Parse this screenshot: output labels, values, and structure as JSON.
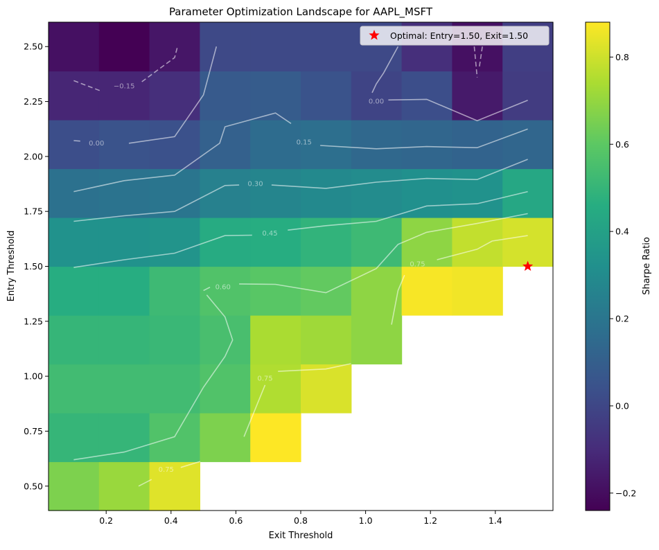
{
  "chart_data": {
    "type": "heatmap",
    "title": "Parameter Optimization Landscape for AAPL_MSFT",
    "xlabel": "Exit Threshold",
    "ylabel": "Entry Threshold",
    "colorbar_label": "Sharpe Ratio",
    "colormap": "viridis",
    "x_centers": [
      0.1,
      0.2555,
      0.411,
      0.5665,
      0.722,
      0.8775,
      1.033,
      1.1885,
      1.344,
      1.5
    ],
    "y_centers": [
      0.5,
      0.7222,
      0.9444,
      1.1667,
      1.3889,
      1.6111,
      1.8333,
      2.0556,
      2.2778,
      2.5
    ],
    "xlim": [
      0.0222,
      1.5778
    ],
    "ylim": [
      0.3889,
      2.6111
    ],
    "x_ticks": [
      "0.2",
      "0.4",
      "0.6",
      "0.8",
      "1.0",
      "1.2",
      "1.4"
    ],
    "y_ticks": [
      "0.50",
      "0.75",
      "1.00",
      "1.25",
      "1.50",
      "1.75",
      "2.00",
      "2.25",
      "2.50"
    ],
    "color_range": [
      -0.24,
      0.88
    ],
    "colorbar_ticks": [
      "−0.2",
      "0.0",
      "0.2",
      "0.4",
      "0.6",
      "0.8"
    ],
    "values": [
      [
        0.66,
        0.71,
        0.83,
        null,
        null,
        null,
        null,
        null,
        null,
        null
      ],
      [
        0.5,
        0.5,
        0.57,
        0.66,
        0.88,
        null,
        null,
        null,
        null,
        null
      ],
      [
        0.53,
        0.53,
        0.53,
        0.57,
        0.75,
        0.82,
        null,
        null,
        null,
        null
      ],
      [
        0.5,
        0.5,
        0.51,
        0.55,
        0.74,
        0.72,
        0.69,
        null,
        null,
        null
      ],
      [
        0.46,
        0.46,
        0.52,
        0.57,
        0.59,
        0.61,
        0.69,
        0.87,
        0.86,
        null
      ],
      [
        0.33,
        0.33,
        0.34,
        0.45,
        0.46,
        0.49,
        0.52,
        0.69,
        0.78,
        0.81
      ],
      [
        0.18,
        0.19,
        0.2,
        0.25,
        0.27,
        0.29,
        0.3,
        0.32,
        0.33,
        0.43
      ],
      [
        0.03,
        0.05,
        0.04,
        0.11,
        0.16,
        0.17,
        0.14,
        0.13,
        0.12,
        0.13
      ],
      [
        -0.12,
        -0.12,
        -0.09,
        0.08,
        0.09,
        0.05,
        -0.01,
        0.03,
        -0.16,
        -0.04
      ],
      [
        -0.19,
        -0.24,
        -0.17,
        0.01,
        0.01,
        0.01,
        0.01,
        -0.09,
        -0.19,
        -0.03
      ]
    ],
    "contours": [
      {
        "level": -0.15,
        "label": "−0.15",
        "dashed": true,
        "label_at": [
          0.2555,
          2.32
        ],
        "segments": [
          [
            [
              0.1,
              2.345
            ],
            [
              0.18,
              2.3
            ]
          ],
          [
            [
              0.31,
              2.34
            ],
            [
              0.411,
              2.45
            ],
            [
              0.42,
              2.5
            ]
          ],
          [
            [
              1.335,
              2.5
            ],
            [
              1.344,
              2.36
            ]
          ],
          [
            [
              1.36,
              2.5
            ],
            [
              1.35,
              2.4
            ]
          ]
        ]
      },
      {
        "level": 0.0,
        "label": "0.00",
        "dashed": false,
        "label_at": [
          0.17,
          2.06
        ],
        "segments": [
          [
            [
              0.1,
              2.072
            ],
            [
              0.12,
              2.07
            ]
          ],
          [
            [
              0.27,
              2.06
            ],
            [
              0.411,
              2.09
            ],
            [
              0.5,
              2.28
            ],
            [
              0.54,
              2.5
            ]
          ]
        ]
      },
      {
        "level": 0.0,
        "label": "0.00",
        "dashed": false,
        "label_at": [
          1.033,
          2.25
        ],
        "segments": [
          [
            [
              1.02,
              2.29
            ],
            [
              1.033,
              2.33
            ],
            [
              1.0555,
              2.38
            ],
            [
              1.1,
              2.5
            ]
          ],
          [
            [
              1.07,
              2.257
            ],
            [
              1.1885,
              2.26
            ],
            [
              1.344,
              2.163
            ],
            [
              1.5,
              2.256
            ]
          ]
        ]
      },
      {
        "level": 0.15,
        "label": "0.15",
        "dashed": false,
        "label_at": [
          0.81,
          2.065
        ],
        "segments": [
          [
            [
              0.1,
              1.84
            ],
            [
              0.2555,
              1.89
            ],
            [
              0.411,
              1.915
            ],
            [
              0.55,
              2.06
            ],
            [
              0.5665,
              2.135
            ],
            [
              0.722,
              2.198
            ],
            [
              0.77,
              2.15
            ]
          ],
          [
            [
              0.86,
              2.05
            ],
            [
              1.033,
              2.035
            ],
            [
              1.1885,
              2.045
            ],
            [
              1.344,
              2.04
            ],
            [
              1.5,
              2.125
            ]
          ]
        ]
      },
      {
        "level": 0.3,
        "label": "0.30",
        "dashed": false,
        "label_at": [
          0.66,
          1.875
        ],
        "segments": [
          [
            [
              0.1,
              1.705
            ],
            [
              0.2555,
              1.73
            ],
            [
              0.411,
              1.75
            ],
            [
              0.5665,
              1.868
            ],
            [
              0.61,
              1.87
            ]
          ],
          [
            [
              0.71,
              1.87
            ],
            [
              0.8775,
              1.855
            ],
            [
              1.033,
              1.883
            ],
            [
              1.1885,
              1.9
            ],
            [
              1.344,
              1.895
            ],
            [
              1.5,
              1.987
            ]
          ]
        ]
      },
      {
        "level": 0.45,
        "label": "0.45",
        "dashed": false,
        "label_at": [
          0.705,
          1.65
        ],
        "segments": [
          [
            [
              0.1,
              1.495
            ],
            [
              0.2555,
              1.53
            ],
            [
              0.411,
              1.56
            ],
            [
              0.5665,
              1.64
            ],
            [
              0.65,
              1.642
            ]
          ],
          [
            [
              0.76,
              1.665
            ],
            [
              0.8775,
              1.685
            ],
            [
              1.033,
              1.705
            ],
            [
              1.1885,
              1.775
            ],
            [
              1.344,
              1.785
            ],
            [
              1.5,
              1.84
            ]
          ]
        ]
      },
      {
        "level": 0.6,
        "label": "0.60",
        "dashed": false,
        "label_at": [
          0.56,
          1.405
        ],
        "segments": [
          [
            [
              0.61,
              1.42
            ],
            [
              0.722,
              1.418
            ],
            [
              0.8775,
              1.38
            ],
            [
              1.033,
              1.49
            ],
            [
              1.1,
              1.6
            ],
            [
              1.1885,
              1.655
            ],
            [
              1.344,
              1.695
            ],
            [
              1.5,
              1.74
            ]
          ],
          [
            [
              0.5,
              1.39
            ],
            [
              0.52,
              1.405
            ]
          ],
          [
            [
              0.51,
              1.37
            ],
            [
              0.5665,
              1.27
            ],
            [
              0.59,
              1.165
            ],
            [
              0.5665,
              1.09
            ],
            [
              0.5,
              0.95
            ],
            [
              0.411,
              0.725
            ],
            [
              0.2555,
              0.655
            ],
            [
              0.1,
              0.62
            ]
          ]
        ]
      },
      {
        "level": 0.75,
        "label": "0.75",
        "dashed": false,
        "label_at": [
          1.16,
          1.51
        ],
        "segments": [
          [
            [
              1.08,
              1.235
            ],
            [
              1.1,
              1.39
            ],
            [
              1.12,
              1.46
            ]
          ],
          [
            [
              1.22,
              1.53
            ],
            [
              1.344,
              1.578
            ],
            [
              1.39,
              1.615
            ],
            [
              1.5,
              1.64
            ]
          ]
        ]
      },
      {
        "level": 0.75,
        "label": "0.75",
        "dashed": false,
        "label_at": [
          0.69,
          0.99
        ],
        "segments": [
          [
            [
              0.625,
              0.725
            ],
            [
              0.69,
              0.96
            ]
          ],
          [
            [
              0.73,
              1.022
            ],
            [
              0.8775,
              1.033
            ],
            [
              0.955,
              1.057
            ]
          ]
        ]
      },
      {
        "level": 0.75,
        "label": "0.75",
        "dashed": false,
        "label_at": [
          0.385,
          0.575
        ],
        "segments": [
          [
            [
              0.3,
              0.5
            ],
            [
              0.34,
              0.53
            ]
          ],
          [
            [
              0.43,
              0.585
            ],
            [
              0.49,
              0.612
            ]
          ]
        ]
      }
    ],
    "optimal_point": {
      "x": 1.5,
      "y": 1.5
    },
    "legend": {
      "position": "top-right",
      "label": "Optimal: Entry=1.50, Exit=1.50",
      "marker_color": "#ff0000"
    }
  }
}
